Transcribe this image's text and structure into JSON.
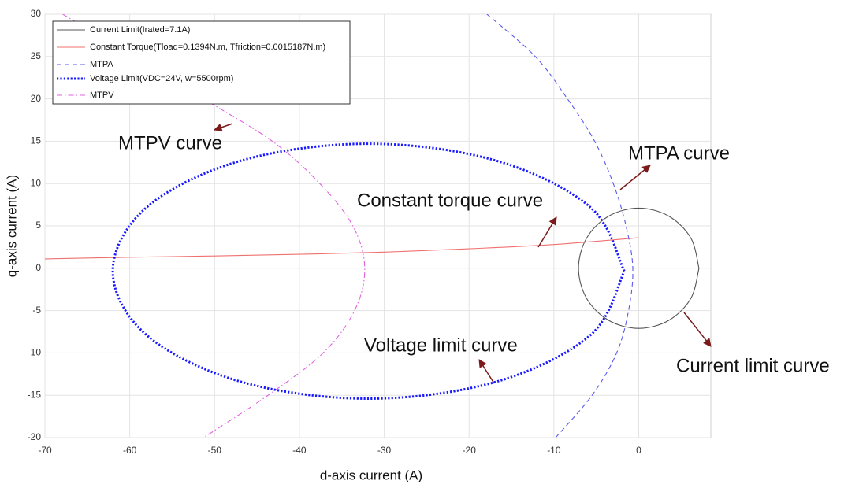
{
  "chart_data": {
    "type": "line",
    "xlabel": "d-axis current (A)",
    "ylabel": "q-axis current (A)",
    "xlim": [
      -70,
      8.5
    ],
    "ylim": [
      -20,
      30
    ],
    "xticks": [
      -70,
      -60,
      -50,
      -40,
      -30,
      -20,
      -10,
      0
    ],
    "yticks": [
      -20,
      -15,
      -10,
      -5,
      0,
      5,
      10,
      15,
      20,
      25,
      30
    ],
    "grid": true,
    "legend": "upper left",
    "series": [
      {
        "name": "Current Limit(Irated=7.1A)",
        "color": "#555555",
        "dash": "solid",
        "x": [
          7.1,
          6.15,
          3.55,
          0,
          -3.55,
          -6.15,
          -7.1,
          -6.15,
          -3.55,
          0,
          3.55,
          6.15,
          7.1
        ],
        "values": [
          0,
          3.55,
          6.15,
          7.1,
          6.15,
          3.55,
          0,
          -3.55,
          -6.15,
          -7.1,
          -6.15,
          -3.55,
          0
        ]
      },
      {
        "name": "Constant Torque(Tload=0.1394N.m, Tfriction=0.0015187N.m)",
        "color": "#f07070",
        "dash": "solid",
        "x": [
          -70,
          -60,
          -50,
          -40,
          -30,
          -20,
          -10,
          0
        ],
        "values": [
          1.1,
          1.3,
          1.45,
          1.65,
          1.9,
          2.3,
          2.8,
          3.6
        ]
      },
      {
        "name": "MTPA",
        "color": "#5a5af0",
        "dash": "dashed",
        "x": [
          -17.9,
          -12.2,
          -8.4,
          -5.2,
          -3,
          -1.5,
          -0.7,
          -1.2,
          -2.6,
          -5.5,
          -9.8
        ],
        "values": [
          30,
          25,
          20,
          15,
          10,
          5,
          0,
          -5,
          -10,
          -15,
          -20
        ]
      },
      {
        "name": "Voltage Limit(VDC=24V, w=5500rpm)",
        "color": "#1a1aff",
        "dash": "dotted",
        "x": [
          -1.7,
          -5.7,
          -16.8,
          -31.85,
          -46.9,
          -58,
          -62,
          -58,
          -46.9,
          -31.85,
          -16.8,
          -5.7,
          -1.7
        ],
        "values": [
          -0.35,
          7.2,
          12.7,
          14.7,
          12.7,
          7.2,
          -0.35,
          -7.9,
          -13.4,
          -15.4,
          -13.4,
          -7.9,
          -0.35
        ]
      },
      {
        "name": "MTPV",
        "color": "#e060e0",
        "dash": "dashdot",
        "x": [
          -67.9,
          -59.5,
          -51.3,
          -43.2,
          -37.6,
          -33.7,
          -32.3,
          -33.5,
          -37.2,
          -43.7,
          -51.3
        ],
        "values": [
          30,
          25,
          20,
          15,
          10,
          5,
          0,
          -5,
          -10,
          -15,
          -20
        ]
      }
    ],
    "annotations": [
      "MTPV curve",
      "MTPA curve",
      "Constant torque curve",
      "Voltage limit curve",
      "Current limit curve"
    ]
  }
}
